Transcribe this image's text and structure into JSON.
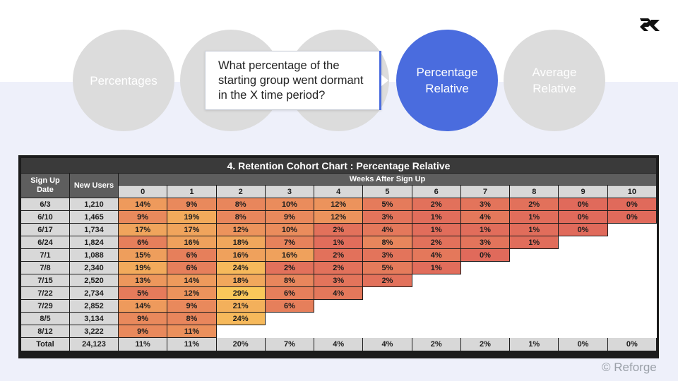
{
  "nav": {
    "circles": [
      {
        "label": "Percentages",
        "active": false
      },
      {
        "label": "",
        "active": false
      },
      {
        "label": "",
        "active": false
      },
      {
        "label": "Percentage Relative",
        "active": true
      },
      {
        "label": "Average Relative",
        "active": false
      }
    ],
    "callout_text": "What percentage of the starting group went dormant in the X time period?"
  },
  "table": {
    "title": "4. Retention Cohort Chart : Percentage Relative",
    "col_signup": "Sign Up Date",
    "col_newusers": "New Users",
    "col_weeks": "Weeks After Sign Up",
    "weeks": [
      "0",
      "1",
      "2",
      "3",
      "4",
      "5",
      "6",
      "7",
      "8",
      "9",
      "10"
    ],
    "rows": [
      {
        "date": "6/3",
        "users": "1,210",
        "vals": [
          "14%",
          "9%",
          "8%",
          "10%",
          "12%",
          "5%",
          "2%",
          "3%",
          "2%",
          "0%",
          "0%"
        ]
      },
      {
        "date": "6/10",
        "users": "1,465",
        "vals": [
          "9%",
          "19%",
          "8%",
          "9%",
          "12%",
          "3%",
          "1%",
          "4%",
          "1%",
          "0%",
          "0%"
        ]
      },
      {
        "date": "6/17",
        "users": "1,734",
        "vals": [
          "17%",
          "17%",
          "12%",
          "10%",
          "2%",
          "4%",
          "1%",
          "1%",
          "1%",
          "0%"
        ]
      },
      {
        "date": "6/24",
        "users": "1,824",
        "vals": [
          "6%",
          "16%",
          "18%",
          "7%",
          "1%",
          "8%",
          "2%",
          "3%",
          "1%"
        ]
      },
      {
        "date": "7/1",
        "users": "1,088",
        "vals": [
          "15%",
          "6%",
          "16%",
          "16%",
          "2%",
          "3%",
          "4%",
          "0%"
        ]
      },
      {
        "date": "7/8",
        "users": "2,340",
        "vals": [
          "19%",
          "6%",
          "24%",
          "2%",
          "2%",
          "5%",
          "1%"
        ]
      },
      {
        "date": "7/15",
        "users": "2,520",
        "vals": [
          "13%",
          "14%",
          "18%",
          "8%",
          "3%",
          "2%"
        ]
      },
      {
        "date": "7/22",
        "users": "2,734",
        "vals": [
          "5%",
          "12%",
          "29%",
          "6%",
          "4%"
        ]
      },
      {
        "date": "7/29",
        "users": "2,852",
        "vals": [
          "14%",
          "9%",
          "21%",
          "6%"
        ]
      },
      {
        "date": "8/5",
        "users": "3,134",
        "vals": [
          "9%",
          "8%",
          "24%"
        ]
      },
      {
        "date": "8/12",
        "users": "3,222",
        "vals": [
          "9%",
          "11%"
        ]
      }
    ],
    "total": {
      "label": "Total",
      "users": "24,123",
      "vals": [
        "11%",
        "11%",
        "20%",
        "7%",
        "4%",
        "4%",
        "2%",
        "2%",
        "1%",
        "0%",
        "0%"
      ]
    }
  },
  "copyright": "© Reforge",
  "colors": {
    "accent": "#4a6cde",
    "circle": "#dcdcdc",
    "low": "#e06a5b",
    "high": "#fac85a"
  }
}
